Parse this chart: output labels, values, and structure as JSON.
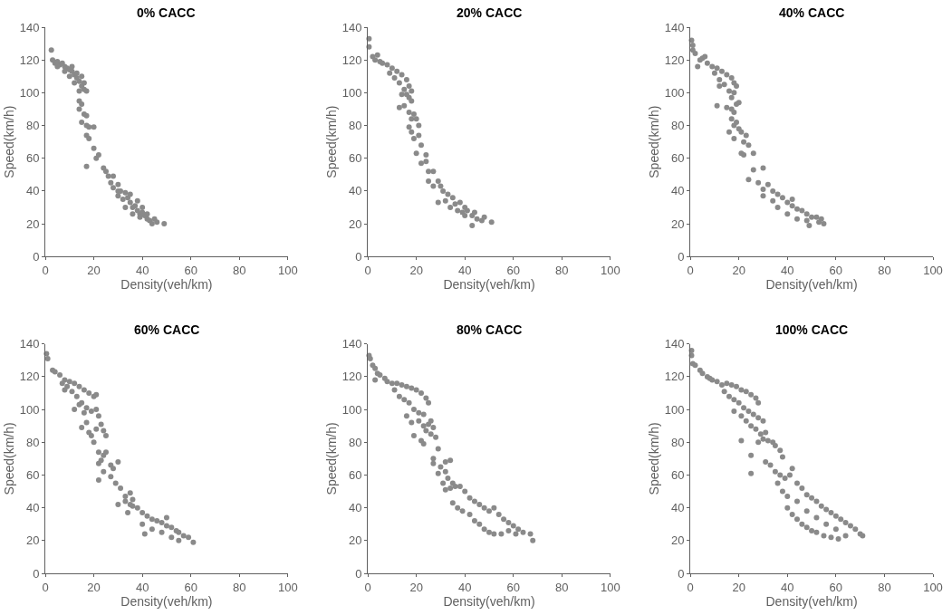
{
  "chart_data": [
    {
      "type": "scatter",
      "title": "0% CACC",
      "xlabel": "Density(veh/km)",
      "ylabel": "Speed(km/h)",
      "color": "#8a8a8a",
      "marker": "circle",
      "xlim": [
        0,
        100
      ],
      "ylim": [
        0,
        140
      ],
      "xticks": [
        0,
        20,
        40,
        60,
        80,
        100
      ],
      "yticks": [
        0,
        20,
        40,
        60,
        80,
        100,
        120,
        140
      ],
      "x": [
        2.5,
        3,
        4,
        5,
        6,
        7,
        8,
        9,
        10,
        11,
        12,
        13,
        14,
        15,
        16,
        17,
        5,
        8,
        10,
        12,
        14,
        16,
        13,
        15,
        11,
        14,
        15,
        14,
        16,
        17,
        15,
        17,
        18,
        20,
        17,
        18,
        20,
        21,
        22,
        17,
        24,
        25,
        26,
        28,
        27,
        28,
        30,
        31,
        33,
        32,
        34,
        30,
        35,
        36,
        37,
        38,
        39,
        40,
        41,
        42,
        43,
        44,
        45,
        46,
        49,
        35,
        38,
        40,
        30,
        33,
        36,
        39,
        42
      ],
      "values": [
        126,
        120,
        118,
        119,
        117,
        118,
        116,
        115,
        114,
        113,
        111,
        109,
        107,
        104,
        102,
        101,
        116,
        113,
        110,
        106,
        101,
        106,
        112,
        110,
        116,
        95,
        93,
        90,
        87,
        86,
        82,
        80,
        79,
        79,
        74,
        72,
        66,
        60,
        62,
        55,
        54,
        52,
        49,
        49,
        45,
        42,
        44,
        40,
        39,
        35,
        36,
        37,
        33,
        30,
        31,
        28,
        26,
        27,
        25,
        23,
        22,
        20,
        23,
        21,
        20,
        38,
        34,
        30,
        40,
        30,
        26,
        24,
        26
      ]
    },
    {
      "type": "scatter",
      "title": "20% CACC",
      "xlabel": "Density(veh/km)",
      "ylabel": "Speed(km/h)",
      "color": "#8a8a8a",
      "marker": "circle",
      "xlim": [
        0,
        100
      ],
      "ylim": [
        0,
        140
      ],
      "xticks": [
        0,
        20,
        40,
        60,
        80,
        100
      ],
      "yticks": [
        0,
        20,
        40,
        60,
        80,
        100,
        120,
        140
      ],
      "x": [
        0.5,
        0.5,
        2,
        3,
        4,
        5,
        6,
        8,
        10,
        12,
        14,
        16,
        17,
        18,
        9,
        11,
        13,
        15,
        14,
        16,
        17,
        18,
        13,
        15,
        17,
        18,
        17,
        19,
        20,
        21,
        18,
        19,
        21,
        22,
        20,
        22,
        24,
        24,
        25,
        27,
        25,
        27,
        29,
        30,
        29,
        31,
        33,
        35,
        32,
        36,
        38,
        40,
        37,
        39,
        41,
        43,
        44,
        45,
        47,
        43,
        48,
        51,
        34,
        40
      ],
      "values": [
        133,
        128,
        122,
        120,
        123,
        119,
        118,
        117,
        115,
        113,
        111,
        108,
        104,
        101,
        112,
        109,
        106,
        102,
        99,
        99,
        97,
        95,
        91,
        92,
        88,
        84,
        79,
        87,
        84,
        80,
        76,
        72,
        74,
        68,
        63,
        57,
        62,
        58,
        52,
        52,
        46,
        43,
        46,
        43,
        33,
        40,
        38,
        36,
        34,
        32,
        33,
        30,
        28,
        27,
        28,
        25,
        27,
        23,
        22,
        19,
        24,
        21,
        30,
        25
      ]
    },
    {
      "type": "scatter",
      "title": "40% CACC",
      "xlabel": "Density(veh/km)",
      "ylabel": "Speed(km/h)",
      "color": "#8a8a8a",
      "marker": "circle",
      "xlim": [
        0,
        100
      ],
      "ylim": [
        0,
        140
      ],
      "xticks": [
        0,
        20,
        40,
        60,
        80,
        100
      ],
      "yticks": [
        0,
        20,
        40,
        60,
        80,
        100,
        120,
        140
      ],
      "x": [
        0.5,
        1,
        1,
        2,
        4,
        5,
        6,
        3,
        7,
        9,
        11,
        13,
        15,
        17,
        18,
        19,
        10,
        12,
        14,
        16,
        17,
        12,
        18,
        11,
        15,
        17,
        18,
        19,
        20,
        17,
        18,
        19,
        20,
        21,
        16,
        18,
        22,
        23,
        24,
        21,
        22,
        26,
        26,
        30,
        24,
        28,
        30,
        30,
        32,
        34,
        36,
        38,
        40,
        42,
        44,
        46,
        48,
        50,
        52,
        54,
        55,
        53,
        36,
        40,
        44,
        48,
        49,
        34,
        42
      ],
      "values": [
        132,
        129,
        126,
        124,
        120,
        121,
        122,
        116,
        118,
        116,
        115,
        113,
        111,
        109,
        106,
        104,
        112,
        108,
        105,
        101,
        97,
        104,
        100,
        92,
        91,
        90,
        88,
        93,
        94,
        84,
        80,
        82,
        78,
        76,
        76,
        72,
        70,
        74,
        68,
        63,
        62,
        63,
        53,
        54,
        47,
        45,
        41,
        37,
        44,
        40,
        38,
        36,
        33,
        31,
        29,
        28,
        26,
        24,
        24,
        23,
        20,
        21,
        30,
        26,
        23,
        22,
        19,
        34,
        35
      ]
    },
    {
      "type": "scatter",
      "title": "60% CACC",
      "xlabel": "Density(veh/km)",
      "ylabel": "Speed(km/h)",
      "color": "#8a8a8a",
      "marker": "circle",
      "xlim": [
        0,
        100
      ],
      "ylim": [
        0,
        140
      ],
      "xticks": [
        0,
        20,
        40,
        60,
        80,
        100
      ],
      "yticks": [
        0,
        20,
        40,
        60,
        80,
        100,
        120,
        140
      ],
      "x": [
        0.5,
        1,
        3,
        4,
        6,
        8,
        10,
        12,
        14,
        16,
        18,
        20,
        21,
        7,
        9,
        11,
        13,
        15,
        17,
        19,
        21,
        8,
        12,
        14,
        16,
        15,
        17,
        18,
        19,
        21,
        22,
        23,
        24,
        25,
        20,
        22,
        23,
        24,
        25,
        22,
        22,
        24,
        27,
        27,
        28,
        30,
        29,
        31,
        33,
        35,
        36,
        30,
        33,
        35,
        34,
        36,
        38,
        40,
        42,
        44,
        46,
        48,
        50,
        52,
        54,
        55,
        57,
        59,
        61,
        40,
        44,
        48,
        52,
        55,
        41,
        50
      ],
      "values": [
        134,
        131,
        124,
        123,
        121,
        118,
        117,
        116,
        114,
        112,
        110,
        108,
        109,
        116,
        114,
        111,
        108,
        104,
        101,
        99,
        100,
        112,
        100,
        103,
        98,
        89,
        92,
        86,
        84,
        88,
        96,
        91,
        87,
        84,
        80,
        74,
        69,
        72,
        74,
        67,
        57,
        62,
        66,
        59,
        64,
        68,
        55,
        52,
        47,
        49,
        45,
        42,
        44,
        42,
        37,
        41,
        40,
        37,
        35,
        33,
        32,
        31,
        29,
        28,
        26,
        25,
        23,
        22,
        19,
        30,
        27,
        25,
        22,
        20,
        24,
        34
      ]
    },
    {
      "type": "scatter",
      "title": "80% CACC",
      "xlabel": "Density(veh/km)",
      "ylabel": "Speed(km/h)",
      "color": "#8a8a8a",
      "marker": "circle",
      "xlim": [
        0,
        100
      ],
      "ylim": [
        0,
        140
      ],
      "xticks": [
        0,
        20,
        40,
        60,
        80,
        100
      ],
      "yticks": [
        0,
        20,
        40,
        60,
        80,
        100,
        120,
        140
      ],
      "x": [
        0.5,
        1,
        2,
        3,
        4,
        3,
        5,
        7,
        8,
        10,
        12,
        14,
        16,
        18,
        20,
        22,
        24,
        25,
        11,
        13,
        15,
        17,
        19,
        21,
        23,
        16,
        18,
        19,
        21,
        23,
        24,
        25,
        26,
        27,
        22,
        23,
        26,
        28,
        29,
        27,
        27,
        30,
        29,
        32,
        34,
        32,
        33,
        35,
        31,
        32,
        34,
        36,
        38,
        40,
        35,
        37,
        39,
        42,
        44,
        46,
        48,
        50,
        52,
        54,
        56,
        58,
        60,
        62,
        64,
        67,
        68,
        42,
        44,
        46,
        48,
        50,
        52,
        55,
        58,
        61
      ],
      "values": [
        133,
        131,
        127,
        125,
        122,
        118,
        121,
        119,
        117,
        116,
        116,
        115,
        114,
        113,
        112,
        110,
        107,
        104,
        112,
        108,
        106,
        104,
        100,
        98,
        97,
        96,
        92,
        84,
        93,
        90,
        87,
        91,
        93,
        89,
        81,
        79,
        85,
        83,
        76,
        70,
        67,
        65,
        61,
        68,
        69,
        62,
        58,
        55,
        55,
        51,
        52,
        53,
        53,
        50,
        43,
        40,
        38,
        46,
        44,
        42,
        40,
        38,
        40,
        36,
        33,
        31,
        29,
        27,
        25,
        24,
        20,
        36,
        32,
        30,
        27,
        25,
        24,
        24,
        26,
        24
      ]
    },
    {
      "type": "scatter",
      "title": "100% CACC",
      "xlabel": "Density(veh/km)",
      "ylabel": "Speed(km/h)",
      "color": "#8a8a8a",
      "marker": "circle",
      "xlim": [
        0,
        100
      ],
      "ylim": [
        0,
        140
      ],
      "xticks": [
        0,
        20,
        40,
        60,
        80,
        100
      ],
      "yticks": [
        0,
        20,
        40,
        60,
        80,
        100,
        120,
        140
      ],
      "x": [
        0.5,
        0.5,
        1,
        2,
        4,
        5,
        7,
        8,
        9,
        11,
        13,
        15,
        17,
        19,
        21,
        23,
        25,
        27,
        28,
        14,
        16,
        18,
        20,
        22,
        24,
        26,
        28,
        30,
        18,
        21,
        23,
        25,
        27,
        29,
        31,
        21,
        25,
        25,
        28,
        30,
        32,
        34,
        35,
        37,
        38,
        31,
        33,
        35,
        37,
        39,
        41,
        42,
        36,
        38,
        40,
        44,
        46,
        48,
        50,
        52,
        54,
        56,
        58,
        60,
        62,
        64,
        66,
        68,
        70,
        71,
        40,
        42,
        44,
        46,
        48,
        50,
        52,
        55,
        58,
        61,
        64,
        44,
        48,
        52,
        56,
        60
      ],
      "values": [
        136,
        133,
        128,
        127,
        124,
        122,
        120,
        119,
        118,
        117,
        115,
        116,
        115,
        114,
        112,
        111,
        109,
        107,
        104,
        111,
        108,
        106,
        104,
        101,
        99,
        97,
        95,
        93,
        99,
        96,
        93,
        90,
        88,
        85,
        86,
        81,
        72,
        61,
        80,
        82,
        81,
        80,
        78,
        75,
        71,
        68,
        66,
        62,
        60,
        58,
        60,
        64,
        55,
        50,
        47,
        55,
        52,
        48,
        46,
        44,
        41,
        39,
        37,
        35,
        33,
        31,
        29,
        27,
        24,
        23,
        40,
        36,
        33,
        30,
        28,
        26,
        25,
        23,
        22,
        21,
        23,
        44,
        38,
        34,
        30,
        27
      ]
    }
  ]
}
